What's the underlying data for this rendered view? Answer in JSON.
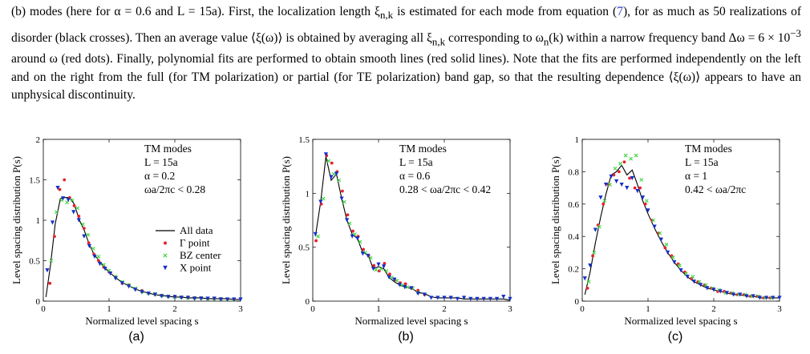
{
  "paragraph": [
    "(b) modes (here for α = 0.6 and L = 15a). First, the localization length ξ",
    "n,k",
    " is estimated for each mode from equation (",
    "7",
    "), for as much as 50 realizations of disorder (black crosses). Then an average value ⟨ξ(ω)⟩ is obtained by averaging all ξ",
    "n,k",
    " corresponding to ω",
    "n",
    "(k) within a narrow frequency band Δω = 6 × 10",
    "−3",
    " around ω (red dots). Finally, polynomial fits are performed to obtain smooth lines (red solid lines). Note that the fits are performed independently on the left and on the right from the full (for TM polarization) or partial (for TE polarization) band gap, so that the resulting dependence ⟨ξ(ω)⟩ appears to have an unphysical discontinuity."
  ],
  "chart_data": [
    {
      "type": "scatter",
      "caption": "(a)",
      "xlabel": "Normalized level spacing s",
      "ylabel": "Level spacing distribution P(s)",
      "xlim": [
        0,
        3
      ],
      "ylim": [
        0,
        2
      ],
      "xticks": [
        "0",
        "1",
        "2",
        "3"
      ],
      "yticks": [
        "0",
        "0.5",
        "1",
        "1.5",
        "2"
      ],
      "annotations": [
        "TM modes",
        "L = 15a",
        "α = 0.2",
        "ωa/2πc < 0.28"
      ],
      "legend": [
        "All data",
        "Γ point",
        "BZ center",
        "X point"
      ],
      "legend_placement": "right",
      "colors": {
        "all": "#000000",
        "gamma": "#e8202a",
        "bz": "#41d641",
        "x": "#1530c8"
      },
      "series": [
        {
          "name": "All data",
          "style": "line",
          "x": [
            0.04,
            0.11,
            0.18,
            0.26,
            0.33,
            0.4,
            0.47,
            0.55,
            0.62,
            0.7,
            0.77,
            0.85,
            0.92,
            1.0,
            1.1,
            1.2,
            1.3,
            1.4,
            1.5,
            1.6,
            1.7,
            1.8,
            1.9,
            2.0,
            2.1,
            2.2,
            2.3,
            2.4,
            2.5,
            2.6,
            2.7,
            2.8,
            2.9,
            3.0
          ],
          "y": [
            0.05,
            0.45,
            0.95,
            1.27,
            1.28,
            1.28,
            1.2,
            1.0,
            0.88,
            0.7,
            0.58,
            0.5,
            0.42,
            0.36,
            0.29,
            0.23,
            0.19,
            0.15,
            0.12,
            0.1,
            0.08,
            0.07,
            0.06,
            0.05,
            0.05,
            0.04,
            0.04,
            0.04,
            0.03,
            0.03,
            0.03,
            0.03,
            0.02,
            0.02
          ]
        },
        {
          "name": "Γ point",
          "style": "dot",
          "x": [
            0.1,
            0.17,
            0.25,
            0.32,
            0.4,
            0.47,
            0.54,
            0.62,
            0.69,
            0.77,
            0.84,
            0.92,
            1.0,
            1.1,
            1.2,
            1.3,
            1.4,
            1.5,
            1.6,
            1.7,
            1.8,
            1.9,
            2.0,
            2.1,
            2.2,
            2.3,
            2.4,
            2.5,
            2.6,
            2.7,
            2.8,
            2.9
          ],
          "y": [
            0.22,
            0.8,
            1.38,
            1.5,
            1.28,
            1.18,
            1.05,
            0.9,
            0.72,
            0.58,
            0.5,
            0.42,
            0.36,
            0.3,
            0.22,
            0.2,
            0.15,
            0.13,
            0.1,
            0.08,
            0.07,
            0.06,
            0.06,
            0.05,
            0.05,
            0.04,
            0.04,
            0.03,
            0.03,
            0.03,
            0.02,
            0.02
          ]
        },
        {
          "name": "BZ center",
          "style": "cross",
          "x": [
            0.12,
            0.2,
            0.28,
            0.36,
            0.44,
            0.52,
            0.6,
            0.68,
            0.76,
            0.84,
            0.92,
            1.0,
            1.1,
            1.2,
            1.3,
            1.4,
            1.5,
            1.6,
            1.7,
            1.8,
            1.9,
            2.0,
            2.1,
            2.2,
            2.3,
            2.4,
            2.5,
            2.6,
            2.7,
            2.8,
            2.9
          ],
          "y": [
            0.5,
            1.1,
            1.25,
            1.22,
            1.25,
            1.15,
            0.95,
            0.82,
            0.65,
            0.55,
            0.45,
            0.38,
            0.3,
            0.24,
            0.2,
            0.16,
            0.12,
            0.1,
            0.09,
            0.07,
            0.06,
            0.05,
            0.05,
            0.04,
            0.04,
            0.04,
            0.03,
            0.03,
            0.03,
            0.02,
            0.02
          ]
        },
        {
          "name": "X point",
          "style": "triangle",
          "x": [
            0.06,
            0.14,
            0.22,
            0.3,
            0.38,
            0.46,
            0.54,
            0.62,
            0.7,
            0.78,
            0.86,
            0.94,
            1.02,
            1.1,
            1.2,
            1.3,
            1.4,
            1.5,
            1.6,
            1.7,
            1.8,
            1.9,
            2.0,
            2.1,
            2.2,
            2.3,
            2.4,
            2.5,
            2.6,
            2.7,
            2.8,
            2.9,
            3.0
          ],
          "y": [
            0.38,
            0.97,
            1.4,
            1.27,
            1.25,
            1.1,
            1.0,
            0.8,
            0.68,
            0.55,
            0.46,
            0.4,
            0.34,
            0.28,
            0.22,
            0.18,
            0.14,
            0.11,
            0.09,
            0.08,
            0.06,
            0.05,
            0.05,
            0.04,
            0.04,
            0.03,
            0.03,
            0.03,
            0.03,
            0.02,
            0.02,
            0.02,
            0.02
          ]
        }
      ]
    },
    {
      "type": "scatter",
      "caption": "(b)",
      "xlabel": "Normalized level spacing s",
      "ylabel": "Level spacing distribution P(s)",
      "xlim": [
        0,
        3
      ],
      "ylim": [
        0,
        1.5
      ],
      "xticks": [
        "0",
        "1",
        "2",
        "3"
      ],
      "yticks": [
        "0",
        "0.5",
        "1",
        "1.5"
      ],
      "annotations": [
        "TM modes",
        "L = 15a",
        "α = 0.6",
        "0.28 < ωa/2πc < 0.42"
      ],
      "colors": {
        "all": "#000000",
        "gamma": "#e8202a",
        "bz": "#41d641",
        "x": "#1530c8"
      },
      "series": [
        {
          "name": "All data",
          "style": "line",
          "x": [
            0.04,
            0.12,
            0.2,
            0.28,
            0.36,
            0.44,
            0.52,
            0.6,
            0.68,
            0.76,
            0.84,
            0.92,
            1.0,
            1.08,
            1.16,
            1.24,
            1.32,
            1.4,
            1.5,
            1.6,
            1.7,
            1.8,
            1.9,
            2.0,
            2.1,
            2.2,
            2.3,
            2.4,
            2.5,
            2.6,
            2.7,
            2.8,
            2.9,
            3.0
          ],
          "y": [
            0.6,
            0.92,
            1.34,
            1.12,
            1.18,
            0.95,
            0.75,
            0.62,
            0.58,
            0.45,
            0.43,
            0.3,
            0.32,
            0.3,
            0.22,
            0.18,
            0.15,
            0.13,
            0.12,
            0.08,
            0.07,
            0.04,
            0.03,
            0.03,
            0.03,
            0.03,
            0.02,
            0.02,
            0.02,
            0.02,
            0.02,
            0.02,
            0.02,
            0.01
          ]
        },
        {
          "name": "Γ point",
          "style": "dot",
          "x": [
            0.05,
            0.13,
            0.21,
            0.29,
            0.37,
            0.45,
            0.53,
            0.61,
            0.69,
            0.77,
            0.85,
            0.93,
            1.01,
            1.09,
            1.17,
            1.25,
            1.33,
            1.41,
            1.5,
            1.6,
            1.7
          ],
          "y": [
            0.56,
            0.9,
            1.35,
            1.28,
            1.2,
            1.02,
            0.8,
            0.65,
            0.6,
            0.48,
            0.42,
            0.33,
            0.28,
            0.35,
            0.25,
            0.2,
            0.17,
            0.16,
            0.12,
            0.1,
            0.06
          ]
        },
        {
          "name": "BZ center",
          "style": "cross",
          "x": [
            0.08,
            0.16,
            0.24,
            0.32,
            0.4,
            0.48,
            0.56,
            0.64,
            0.72,
            0.8,
            0.88,
            0.96,
            1.04,
            1.12,
            1.2,
            1.28,
            1.36,
            1.44,
            1.52,
            1.6
          ],
          "y": [
            0.6,
            0.95,
            1.3,
            1.18,
            1.12,
            0.92,
            0.72,
            0.62,
            0.55,
            0.45,
            0.4,
            0.29,
            0.3,
            0.28,
            0.22,
            0.19,
            0.15,
            0.13,
            0.12,
            0.08
          ]
        },
        {
          "name": "X point",
          "style": "triangle",
          "x": [
            0.04,
            0.12,
            0.2,
            0.28,
            0.36,
            0.44,
            0.52,
            0.6,
            0.68,
            0.76,
            0.84,
            0.92,
            1.0,
            1.08,
            1.16,
            1.24,
            1.32,
            1.4,
            1.5,
            1.6,
            1.7,
            1.8,
            1.9,
            2.0,
            2.1,
            2.2,
            2.3,
            2.4,
            2.5,
            2.6,
            2.7,
            2.8,
            2.9,
            3.0
          ],
          "y": [
            0.62,
            0.92,
            1.36,
            1.15,
            1.18,
            0.95,
            0.75,
            0.6,
            0.58,
            0.44,
            0.42,
            0.3,
            0.34,
            0.32,
            0.22,
            0.2,
            0.15,
            0.13,
            0.12,
            0.07,
            0.06,
            0.03,
            0.03,
            0.03,
            0.03,
            0.02,
            0.03,
            0.02,
            0.02,
            0.02,
            0.02,
            0.02,
            0.04,
            0.02
          ]
        }
      ]
    },
    {
      "type": "scatter",
      "caption": "(c)",
      "xlabel": "Normalized level spacing s",
      "ylabel": "Level spacing distribution P(s)",
      "xlim": [
        0,
        3
      ],
      "ylim": [
        0,
        1
      ],
      "xticks": [
        "0",
        "1",
        "2",
        "3"
      ],
      "yticks": [
        "0",
        "0.2",
        "0.4",
        "0.6",
        "0.8",
        "1"
      ],
      "annotations": [
        "TM modes",
        "L = 15a",
        "α = 1",
        "0.42 < ωa/2πc"
      ],
      "colors": {
        "all": "#000000",
        "gamma": "#e8202a",
        "bz": "#41d641",
        "x": "#1530c8"
      },
      "series": [
        {
          "name": "All data",
          "style": "line",
          "x": [
            0.04,
            0.12,
            0.2,
            0.28,
            0.36,
            0.44,
            0.52,
            0.6,
            0.68,
            0.76,
            0.84,
            0.92,
            1.0,
            1.1,
            1.2,
            1.3,
            1.4,
            1.5,
            1.6,
            1.7,
            1.8,
            1.9,
            2.0,
            2.1,
            2.2,
            2.3,
            2.4,
            2.5,
            2.6,
            2.7,
            2.8,
            2.9,
            3.0
          ],
          "y": [
            0.04,
            0.18,
            0.36,
            0.52,
            0.66,
            0.78,
            0.8,
            0.84,
            0.78,
            0.81,
            0.72,
            0.62,
            0.54,
            0.45,
            0.37,
            0.3,
            0.24,
            0.19,
            0.15,
            0.12,
            0.1,
            0.08,
            0.07,
            0.06,
            0.05,
            0.04,
            0.04,
            0.03,
            0.03,
            0.02,
            0.02,
            0.02,
            0.02
          ]
        },
        {
          "name": "Γ point",
          "style": "dot",
          "x": [
            0.08,
            0.16,
            0.24,
            0.32,
            0.4,
            0.48,
            0.56,
            0.64,
            0.72,
            0.8,
            0.88,
            0.96,
            1.06,
            1.16,
            1.26,
            1.36,
            1.46,
            1.56,
            1.66,
            1.76,
            1.86,
            1.96,
            2.06,
            2.16,
            2.26,
            2.36,
            2.46,
            2.56,
            2.66,
            2.76,
            2.86
          ],
          "y": [
            0.08,
            0.28,
            0.47,
            0.6,
            0.72,
            0.78,
            0.8,
            0.86,
            0.76,
            0.7,
            0.7,
            0.6,
            0.5,
            0.42,
            0.33,
            0.28,
            0.23,
            0.18,
            0.14,
            0.12,
            0.1,
            0.08,
            0.06,
            0.06,
            0.05,
            0.04,
            0.04,
            0.03,
            0.03,
            0.02,
            0.02
          ]
        },
        {
          "name": "BZ center",
          "style": "cross",
          "x": [
            0.1,
            0.18,
            0.26,
            0.34,
            0.42,
            0.5,
            0.58,
            0.66,
            0.74,
            0.82,
            0.9,
            0.98,
            1.08,
            1.18,
            1.28,
            1.38,
            1.48,
            1.58,
            1.68,
            1.78,
            1.88,
            1.98,
            2.08,
            2.18,
            2.28,
            2.38,
            2.48,
            2.58,
            2.68,
            2.78,
            2.88
          ],
          "y": [
            0.12,
            0.3,
            0.46,
            0.62,
            0.72,
            0.82,
            0.85,
            0.9,
            0.88,
            0.9,
            0.75,
            0.62,
            0.5,
            0.42,
            0.35,
            0.27,
            0.22,
            0.17,
            0.15,
            0.12,
            0.1,
            0.08,
            0.07,
            0.05,
            0.05,
            0.04,
            0.04,
            0.03,
            0.03,
            0.02,
            0.02
          ]
        },
        {
          "name": "X point",
          "style": "triangle",
          "x": [
            0.04,
            0.12,
            0.2,
            0.28,
            0.36,
            0.44,
            0.52,
            0.6,
            0.68,
            0.76,
            0.84,
            0.92,
            1.0,
            1.1,
            1.2,
            1.3,
            1.4,
            1.5,
            1.6,
            1.7,
            1.8,
            1.9,
            2.0,
            2.1,
            2.2,
            2.3,
            2.4,
            2.5,
            2.6,
            2.7,
            2.8,
            2.9,
            3.0
          ],
          "y": [
            0.14,
            0.22,
            0.44,
            0.64,
            0.72,
            0.77,
            0.74,
            0.72,
            0.7,
            0.76,
            0.68,
            0.64,
            0.56,
            0.46,
            0.38,
            0.3,
            0.24,
            0.19,
            0.15,
            0.12,
            0.1,
            0.08,
            0.07,
            0.06,
            0.05,
            0.04,
            0.04,
            0.03,
            0.03,
            0.02,
            0.02,
            0.02,
            0.02
          ]
        }
      ]
    }
  ]
}
